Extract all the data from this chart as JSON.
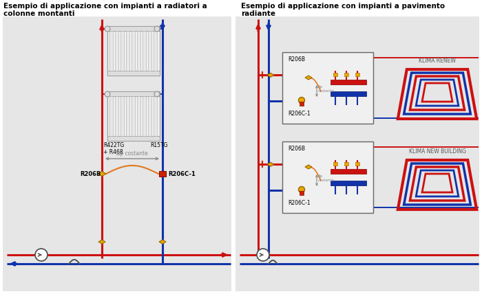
{
  "title_left1": "Esempio di applicazione con impianti a radiatori a",
  "title_left2": "colonne montanti",
  "title_right1": "Esempio di applicazione con impianti a pavimento",
  "title_right2": "radiante",
  "bg_color": "#e6e6e6",
  "white_bg": "#ffffff",
  "red": "#cc1111",
  "blue": "#1133aa",
  "gold": "#e8a800",
  "orange": "#e07820",
  "gray": "#888888",
  "dark_gray": "#555555",
  "label_R206B": "R206B",
  "label_R206C1": "R206C-1",
  "label_R422TG": "R422TG\n+ R468",
  "label_R15TG": "R15TG",
  "label_dp": "Δp costante",
  "label_klima_renew": "KLIMA RENEW",
  "label_klima_new": "KLIMA NEW BUILDING",
  "panel_divider": 340,
  "lw_pipe": 2.2,
  "lw_thin": 1.4
}
